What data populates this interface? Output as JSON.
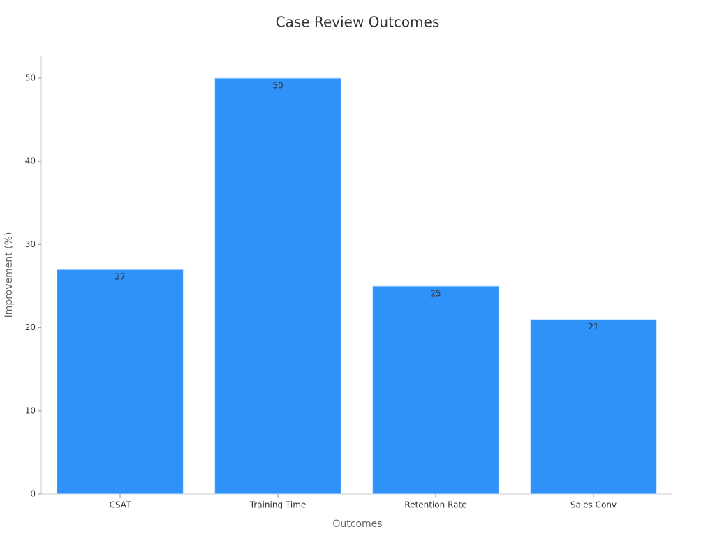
{
  "chart_data": {
    "type": "bar",
    "title": "Case Review Outcomes",
    "x_label": "Outcomes",
    "y_label": "Improvement (%)",
    "categories": [
      "CSAT",
      "Training Time",
      "Retention Rate",
      "Sales Conv"
    ],
    "values": [
      27,
      50,
      25,
      21
    ],
    "color": "#2f92f8",
    "ylim": [
      0,
      52.5
    ],
    "yticks": [
      0,
      10,
      20,
      30,
      40,
      50
    ],
    "grid": false
  }
}
